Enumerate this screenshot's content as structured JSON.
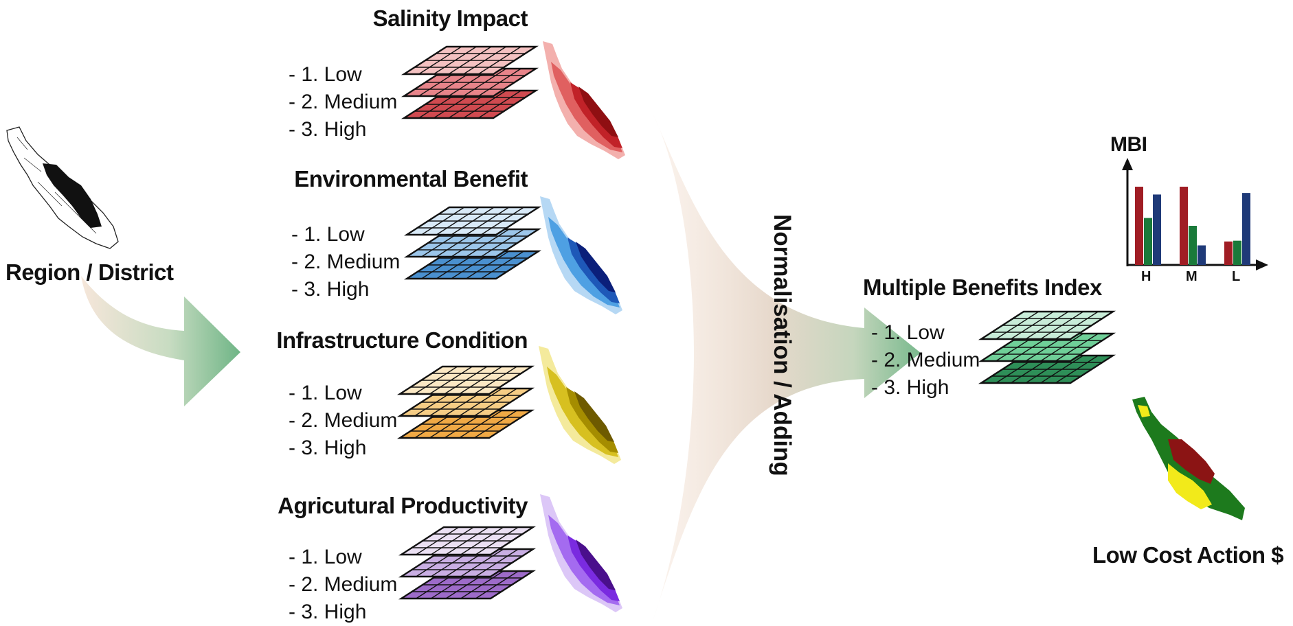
{
  "region_label": "Region / District",
  "layers": [
    {
      "title": "Salinity Impact",
      "levels": [
        "- 1. Low",
        "- 2. Medium",
        "- 3. High"
      ],
      "colors": [
        "#f4c1c1",
        "#e8848a",
        "#d04a50"
      ],
      "map_colors": [
        "#8f0f12",
        "#c12228",
        "#e06060",
        "#f3b0ad"
      ]
    },
    {
      "title": "Environmental Benefit",
      "levels": [
        "- 1. Low",
        "- 2. Medium",
        "- 3. High"
      ],
      "colors": [
        "#d8e9f7",
        "#9cc6ea",
        "#4a90cf"
      ],
      "map_colors": [
        "#0b1f7a",
        "#1e58b8",
        "#4ea0e3",
        "#b6d8f4"
      ]
    },
    {
      "title": "Infrastructure Condition",
      "levels": [
        "- 1. Low",
        "- 2. Medium",
        "- 3. High"
      ],
      "colors": [
        "#fbe8c4",
        "#f6cd85",
        "#f0a945"
      ],
      "map_colors": [
        "#6e5a00",
        "#a58d00",
        "#d7c020",
        "#f4ea9c"
      ]
    },
    {
      "title": "Agricutural Productivity",
      "levels": [
        "- 1. Low",
        "- 2. Medium",
        "- 3. High"
      ],
      "colors": [
        "#ebe0f3",
        "#c9aee3",
        "#9d6bc9"
      ],
      "map_colors": [
        "#4a0f8c",
        "#7a2be0",
        "#a46bf0",
        "#dcc7f7"
      ]
    }
  ],
  "process_label": "Normalisation / Adding",
  "mbi": {
    "title": "Multiple Benefits Index",
    "levels": [
      "- 1. Low",
      "- 2. Medium",
      "- 3. High"
    ],
    "colors": [
      "#c8ecd8",
      "#6fcf98",
      "#2e8f58"
    ]
  },
  "chart_data": {
    "type": "bar",
    "ylabel": "MBI",
    "categories": [
      "H",
      "M",
      "L"
    ],
    "series": [
      {
        "color": "#a01d24",
        "values": [
          1.0,
          1.0,
          0.3
        ]
      },
      {
        "color": "#1a7a3a",
        "values": [
          0.6,
          0.5,
          0.31
        ]
      },
      {
        "color": "#1f3a78",
        "values": [
          0.9,
          0.25,
          0.92
        ]
      }
    ]
  },
  "action_label": "Low Cost Action $",
  "action_map_colors": [
    "#1d7a1d",
    "#8b1414",
    "#f2ea1a"
  ]
}
